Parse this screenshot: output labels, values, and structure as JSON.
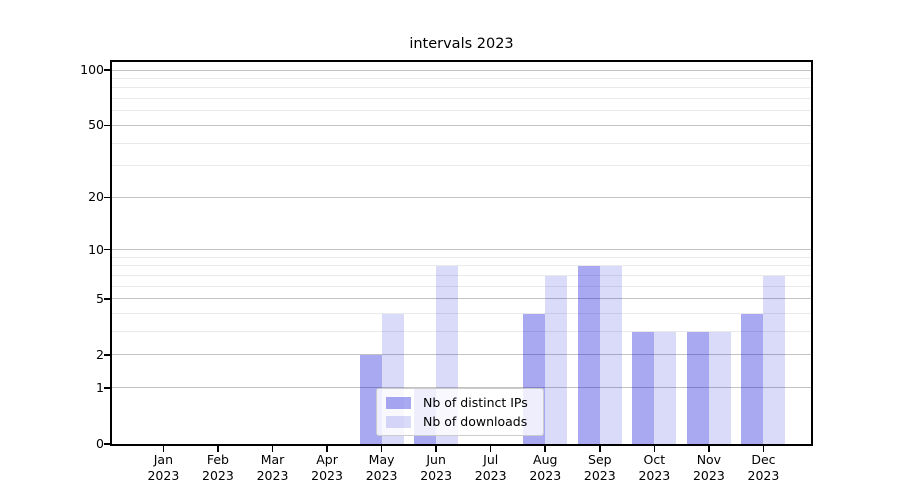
{
  "title": "intervals 2023",
  "colors": {
    "bar_ips": "rgba(8, 8, 218, 0.35)",
    "bar_downloads": "rgba(8, 8, 218, 0.15)",
    "grid_major": "#c3c3c3",
    "grid_minor": "#eaeaea",
    "axis": "#000000",
    "legend_border": "#cccccc"
  },
  "legend": {
    "items": [
      {
        "label": "Nb of distinct IPs",
        "series_key": "bar_ips"
      },
      {
        "label": "Nb of downloads",
        "series_key": "bar_downloads"
      }
    ]
  },
  "chart_data": {
    "type": "bar",
    "title": "intervals 2023",
    "categories": [
      "Jan 2023",
      "Feb 2023",
      "Mar 2023",
      "Apr 2023",
      "May 2023",
      "Jun 2023",
      "Jul 2023",
      "Aug 2023",
      "Sep 2023",
      "Oct 2023",
      "Nov 2023",
      "Dec 2023"
    ],
    "series": [
      {
        "name": "Nb of distinct IPs",
        "values": [
          0,
          0,
          0,
          0,
          2,
          1,
          0,
          4,
          8,
          3,
          3,
          4
        ]
      },
      {
        "name": "Nb of downloads",
        "values": [
          0,
          0,
          0,
          0,
          4,
          8,
          0,
          7,
          8,
          3,
          3,
          7
        ]
      }
    ],
    "xlabel": "",
    "ylabel": "",
    "yscale": "log1p",
    "ylim": [
      0,
      111
    ],
    "yticks": [
      0,
      1,
      2,
      5,
      10,
      20,
      50,
      100
    ],
    "y_minor_gridlines": [
      3,
      4,
      6,
      7,
      8,
      9,
      30,
      40,
      60,
      70,
      80,
      90
    ],
    "grid": true,
    "legend_position": "lower center"
  }
}
